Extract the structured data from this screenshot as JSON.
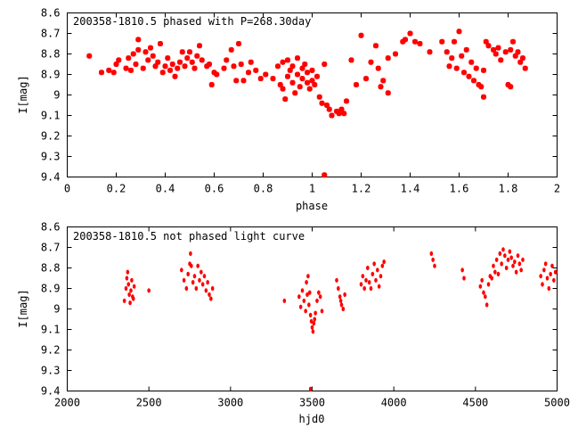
{
  "chart_data": [
    {
      "type": "scatter",
      "title": "200358-1810.5 phased with P=268.30day",
      "xlabel": "phase",
      "ylabel": "I[mag]",
      "xlim": [
        0,
        2
      ],
      "ylim": [
        8.6,
        9.4
      ],
      "y_inverted": true,
      "xticks": [
        "0",
        "0.2",
        "0.4",
        "0.6",
        "0.8",
        "1",
        "1.2",
        "1.4",
        "1.6",
        "1.8",
        "2"
      ],
      "yticks": [
        "8.6",
        "8.7",
        "8.8",
        "8.9",
        "9",
        "9.1",
        "9.2",
        "9.3",
        "9.4"
      ],
      "grid": false,
      "marker_color": "#ff0000",
      "series": [
        {
          "points": [
            [
              0.09,
              8.81
            ],
            [
              0.14,
              8.89
            ],
            [
              0.17,
              8.88
            ],
            [
              0.19,
              8.89
            ],
            [
              0.2,
              8.85
            ],
            [
              0.21,
              8.83
            ],
            [
              0.24,
              8.87
            ],
            [
              0.25,
              8.82
            ],
            [
              0.26,
              8.88
            ],
            [
              0.27,
              8.8
            ],
            [
              0.28,
              8.85
            ],
            [
              0.29,
              8.78
            ],
            [
              0.29,
              8.73
            ],
            [
              0.31,
              8.87
            ],
            [
              0.32,
              8.79
            ],
            [
              0.33,
              8.83
            ],
            [
              0.34,
              8.77
            ],
            [
              0.35,
              8.81
            ],
            [
              0.36,
              8.86
            ],
            [
              0.37,
              8.84
            ],
            [
              0.38,
              8.75
            ],
            [
              0.39,
              8.89
            ],
            [
              0.4,
              8.86
            ],
            [
              0.41,
              8.82
            ],
            [
              0.42,
              8.88
            ],
            [
              0.43,
              8.85
            ],
            [
              0.44,
              8.91
            ],
            [
              0.45,
              8.87
            ],
            [
              0.46,
              8.84
            ],
            [
              0.47,
              8.79
            ],
            [
              0.48,
              8.86
            ],
            [
              0.49,
              8.82
            ],
            [
              0.5,
              8.79
            ],
            [
              0.51,
              8.84
            ],
            [
              0.52,
              8.87
            ],
            [
              0.53,
              8.81
            ],
            [
              0.54,
              8.76
            ],
            [
              0.55,
              8.83
            ],
            [
              0.57,
              8.86
            ],
            [
              0.58,
              8.85
            ],
            [
              0.59,
              8.95
            ],
            [
              0.6,
              8.89
            ],
            [
              0.61,
              8.9
            ],
            [
              0.64,
              8.87
            ],
            [
              0.65,
              8.83
            ],
            [
              0.67,
              8.78
            ],
            [
              0.68,
              8.86
            ],
            [
              0.69,
              8.93
            ],
            [
              0.7,
              8.75
            ],
            [
              0.71,
              8.85
            ],
            [
              0.72,
              8.93
            ],
            [
              0.74,
              8.89
            ],
            [
              0.75,
              8.84
            ],
            [
              0.77,
              8.88
            ],
            [
              0.79,
              8.92
            ],
            [
              0.81,
              8.9
            ],
            [
              0.84,
              8.92
            ],
            [
              0.86,
              8.86
            ],
            [
              0.87,
              8.95
            ],
            [
              0.88,
              8.97
            ],
            [
              0.88,
              8.84
            ],
            [
              0.89,
              9.02
            ],
            [
              0.9,
              8.91
            ],
            [
              0.9,
              8.83
            ],
            [
              0.91,
              8.88
            ],
            [
              0.92,
              8.94
            ],
            [
              0.92,
              8.86
            ],
            [
              0.93,
              8.99
            ],
            [
              0.94,
              8.9
            ],
            [
              0.94,
              8.82
            ],
            [
              0.95,
              8.96
            ],
            [
              0.96,
              8.87
            ],
            [
              0.96,
              8.92
            ],
            [
              0.97,
              8.85
            ],
            [
              0.98,
              8.94
            ],
            [
              0.98,
              8.89
            ],
            [
              0.99,
              8.97
            ],
            [
              1.0,
              8.93
            ],
            [
              1.0,
              8.88
            ],
            [
              1.01,
              8.95
            ],
            [
              1.02,
              8.91
            ],
            [
              1.03,
              9.01
            ],
            [
              1.04,
              9.04
            ],
            [
              1.05,
              9.39
            ],
            [
              1.05,
              8.85
            ],
            [
              1.06,
              9.05
            ],
            [
              1.07,
              9.07
            ],
            [
              1.08,
              9.1
            ],
            [
              1.1,
              9.08
            ],
            [
              1.11,
              9.09
            ],
            [
              1.12,
              9.07
            ],
            [
              1.13,
              9.09
            ],
            [
              1.14,
              9.03
            ],
            [
              1.16,
              8.83
            ],
            [
              1.18,
              8.95
            ],
            [
              1.2,
              8.71
            ],
            [
              1.22,
              8.92
            ],
            [
              1.24,
              8.84
            ],
            [
              1.26,
              8.76
            ],
            [
              1.27,
              8.87
            ],
            [
              1.28,
              8.96
            ],
            [
              1.29,
              8.93
            ],
            [
              1.31,
              8.99
            ],
            [
              1.31,
              8.82
            ],
            [
              1.34,
              8.8
            ],
            [
              1.37,
              8.74
            ],
            [
              1.38,
              8.73
            ],
            [
              1.4,
              8.7
            ],
            [
              1.42,
              8.74
            ],
            [
              1.44,
              8.75
            ],
            [
              1.48,
              8.79
            ],
            [
              1.53,
              8.74
            ],
            [
              1.55,
              8.79
            ],
            [
              1.56,
              8.86
            ],
            [
              1.57,
              8.82
            ],
            [
              1.58,
              8.74
            ],
            [
              1.59,
              8.87
            ],
            [
              1.6,
              8.69
            ],
            [
              1.61,
              8.81
            ],
            [
              1.62,
              8.89
            ],
            [
              1.63,
              8.78
            ],
            [
              1.64,
              8.91
            ],
            [
              1.65,
              8.84
            ],
            [
              1.66,
              8.93
            ],
            [
              1.67,
              8.87
            ],
            [
              1.68,
              8.95
            ],
            [
              1.69,
              8.96
            ],
            [
              1.7,
              9.01
            ],
            [
              1.7,
              8.88
            ],
            [
              1.71,
              8.74
            ],
            [
              1.72,
              8.76
            ],
            [
              1.74,
              8.78
            ],
            [
              1.75,
              8.8
            ],
            [
              1.76,
              8.77
            ],
            [
              1.77,
              8.83
            ],
            [
              1.79,
              8.79
            ],
            [
              1.8,
              8.95
            ],
            [
              1.81,
              8.96
            ],
            [
              1.81,
              8.78
            ],
            [
              1.82,
              8.74
            ],
            [
              1.83,
              8.81
            ],
            [
              1.84,
              8.79
            ],
            [
              1.85,
              8.84
            ],
            [
              1.86,
              8.82
            ],
            [
              1.87,
              8.87
            ]
          ]
        }
      ]
    },
    {
      "type": "scatter",
      "title": "200358-1810.5 not phased light curve",
      "xlabel": "hjd0",
      "ylabel": "I[mag]",
      "xlim": [
        2000,
        5000
      ],
      "ylim": [
        8.6,
        9.4
      ],
      "y_inverted": true,
      "xticks": [
        "2000",
        "2500",
        "3000",
        "3500",
        "4000",
        "4500",
        "5000"
      ],
      "yticks": [
        "8.6",
        "8.7",
        "8.8",
        "8.9",
        "9",
        "9.1",
        "9.2",
        "9.3",
        "9.4"
      ],
      "grid": false,
      "marker_color": "#ff0000",
      "series": [
        {
          "points": [
            [
              2350,
              8.96
            ],
            [
              2360,
              8.9
            ],
            [
              2365,
              8.85
            ],
            [
              2370,
              8.82
            ],
            [
              2375,
              8.88
            ],
            [
              2380,
              8.93
            ],
            [
              2385,
              8.97
            ],
            [
              2390,
              8.91
            ],
            [
              2395,
              8.86
            ],
            [
              2400,
              8.94
            ],
            [
              2405,
              8.95
            ],
            [
              2410,
              8.89
            ],
            [
              2500,
              8.91
            ],
            [
              2700,
              8.81
            ],
            [
              2715,
              8.86
            ],
            [
              2730,
              8.9
            ],
            [
              2740,
              8.83
            ],
            [
              2750,
              8.78
            ],
            [
              2755,
              8.73
            ],
            [
              2760,
              8.79
            ],
            [
              2770,
              8.87
            ],
            [
              2780,
              8.84
            ],
            [
              2790,
              8.9
            ],
            [
              2800,
              8.79
            ],
            [
              2810,
              8.86
            ],
            [
              2820,
              8.82
            ],
            [
              2830,
              8.88
            ],
            [
              2840,
              8.84
            ],
            [
              2850,
              8.91
            ],
            [
              2860,
              8.87
            ],
            [
              2870,
              8.93
            ],
            [
              2880,
              8.95
            ],
            [
              2890,
              8.9
            ],
            [
              3330,
              8.96
            ],
            [
              3420,
              8.94
            ],
            [
              3430,
              8.99
            ],
            [
              3440,
              8.91
            ],
            [
              3450,
              8.96
            ],
            [
              3460,
              9.01
            ],
            [
              3465,
              8.87
            ],
            [
              3470,
              8.93
            ],
            [
              3475,
              8.84
            ],
            [
              3480,
              8.98
            ],
            [
              3485,
              8.92
            ],
            [
              3490,
              9.03
            ],
            [
              3495,
              9.06
            ],
            [
              3500,
              9.09
            ],
            [
              3505,
              9.11
            ],
            [
              3510,
              9.07
            ],
            [
              3515,
              9.05
            ],
            [
              3520,
              9.02
            ],
            [
              3530,
              8.96
            ],
            [
              3540,
              8.92
            ],
            [
              3550,
              8.94
            ],
            [
              3560,
              9.01
            ],
            [
              3490,
              9.39
            ],
            [
              3650,
              8.86
            ],
            [
              3660,
              8.9
            ],
            [
              3670,
              8.94
            ],
            [
              3675,
              8.96
            ],
            [
              3680,
              8.98
            ],
            [
              3690,
              9.0
            ],
            [
              3700,
              8.93
            ],
            [
              3800,
              8.88
            ],
            [
              3810,
              8.84
            ],
            [
              3820,
              8.9
            ],
            [
              3830,
              8.86
            ],
            [
              3840,
              8.8
            ],
            [
              3850,
              8.87
            ],
            [
              3860,
              8.9
            ],
            [
              3870,
              8.83
            ],
            [
              3880,
              8.78
            ],
            [
              3890,
              8.86
            ],
            [
              3900,
              8.81
            ],
            [
              3910,
              8.89
            ],
            [
              3920,
              8.84
            ],
            [
              3930,
              8.79
            ],
            [
              3940,
              8.77
            ],
            [
              4230,
              8.73
            ],
            [
              4240,
              8.76
            ],
            [
              4250,
              8.79
            ],
            [
              4420,
              8.81
            ],
            [
              4430,
              8.85
            ],
            [
              4530,
              8.89
            ],
            [
              4540,
              8.86
            ],
            [
              4550,
              8.92
            ],
            [
              4560,
              8.94
            ],
            [
              4570,
              8.98
            ],
            [
              4580,
              8.88
            ],
            [
              4590,
              8.84
            ],
            [
              4600,
              8.85
            ],
            [
              4610,
              8.79
            ],
            [
              4620,
              8.82
            ],
            [
              4630,
              8.76
            ],
            [
              4640,
              8.83
            ],
            [
              4650,
              8.73
            ],
            [
              4660,
              8.78
            ],
            [
              4670,
              8.71
            ],
            [
              4680,
              8.74
            ],
            [
              4690,
              8.8
            ],
            [
              4700,
              8.76
            ],
            [
              4710,
              8.72
            ],
            [
              4720,
              8.75
            ],
            [
              4730,
              8.79
            ],
            [
              4740,
              8.77
            ],
            [
              4750,
              8.82
            ],
            [
              4760,
              8.74
            ],
            [
              4770,
              8.78
            ],
            [
              4780,
              8.81
            ],
            [
              4790,
              8.76
            ],
            [
              4900,
              8.84
            ],
            [
              4910,
              8.88
            ],
            [
              4920,
              8.81
            ],
            [
              4930,
              8.78
            ],
            [
              4940,
              8.85
            ],
            [
              4950,
              8.9
            ],
            [
              4960,
              8.83
            ],
            [
              4970,
              8.79
            ],
            [
              4980,
              8.86
            ],
            [
              4990,
              8.82
            ]
          ]
        }
      ]
    }
  ]
}
